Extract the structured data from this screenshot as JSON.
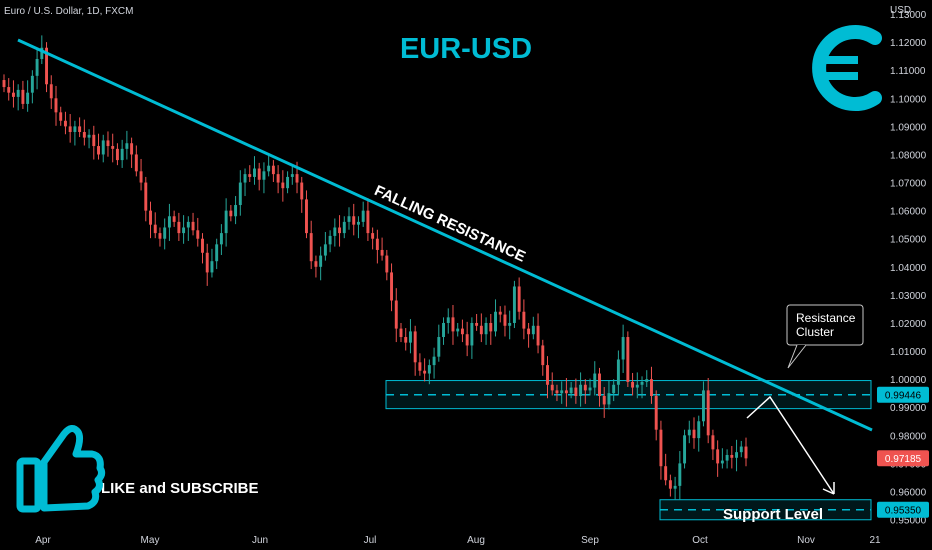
{
  "chart_data": {
    "type": "candlestick",
    "symbol": "Euro / U.S. Dollar, 1D, FXCM",
    "title": "EUR-USD",
    "currency_label": "USD",
    "y_ticks": [
      "1.13000",
      "1.12000",
      "1.11000",
      "1.10000",
      "1.09000",
      "1.08000",
      "1.07000",
      "1.06000",
      "1.05000",
      "1.04000",
      "1.03000",
      "1.02000",
      "1.01000",
      "1.00000",
      "0.99000",
      "0.98000",
      "0.97000",
      "0.96000",
      "0.95000"
    ],
    "x_ticks": [
      "Apr",
      "May",
      "Jun",
      "Jul",
      "Aug",
      "Sep",
      "Oct",
      "Nov",
      "21"
    ],
    "ylim": [
      0.947,
      1.135
    ],
    "candles_close": [
      1.104,
      1.102,
      1.1005,
      1.103,
      1.098,
      1.102,
      1.108,
      1.114,
      1.118,
      1.105,
      1.1,
      1.095,
      1.092,
      1.09,
      1.088,
      1.09,
      1.088,
      1.086,
      1.087,
      1.083,
      1.08,
      1.085,
      1.083,
      1.082,
      1.078,
      1.082,
      1.084,
      1.08,
      1.074,
      1.07,
      1.06,
      1.055,
      1.052,
      1.05,
      1.054,
      1.058,
      1.056,
      1.052,
      1.054,
      1.056,
      1.053,
      1.05,
      1.045,
      1.038,
      1.042,
      1.048,
      1.052,
      1.06,
      1.058,
      1.062,
      1.07,
      1.073,
      1.072,
      1.075,
      1.071,
      1.074,
      1.076,
      1.073,
      1.07,
      1.068,
      1.072,
      1.073,
      1.07,
      1.064,
      1.052,
      1.042,
      1.04,
      1.044,
      1.048,
      1.051,
      1.054,
      1.052,
      1.056,
      1.058,
      1.055,
      1.056,
      1.06,
      1.052,
      1.05,
      1.046,
      1.044,
      1.038,
      1.028,
      1.018,
      1.015,
      1.013,
      1.017,
      1.006,
      1.003,
      1.002,
      1.005,
      1.008,
      1.015,
      1.02,
      1.022,
      1.017,
      1.018,
      1.016,
      1.012,
      1.02,
      1.019,
      1.016,
      1.02,
      1.017,
      1.024,
      1.023,
      1.019,
      1.02,
      1.033,
      1.024,
      1.018,
      1.016,
      1.019,
      1.012,
      1.005,
      0.998,
      0.996,
      0.995,
      0.996,
      0.995,
      0.997,
      0.994,
      0.998,
      0.996,
      0.997,
      1.002,
      0.994,
      0.991,
      0.995,
      0.998,
      1.007,
      1.015,
      0.999,
      0.997,
      0.998,
      0.999,
      1.0,
      0.994,
      0.982,
      0.969,
      0.964,
      0.961,
      0.962,
      0.97,
      0.98,
      0.982,
      0.979,
      0.985,
      0.996,
      0.98,
      0.975,
      0.97,
      0.971,
      0.973,
      0.972,
      0.974,
      0.976,
      0.9718
    ],
    "annotations": {
      "trendline": "FALLING RESISTANCE",
      "callout": "Resistance\nCluster",
      "support_label": "Support Level",
      "cta": "LIKE and SUBSCRIBE"
    },
    "price_markers": [
      {
        "label": "0.99446",
        "value": 0.99446,
        "color": "#00bcd4",
        "text_color": "#000000"
      },
      {
        "label": "0.97185",
        "value": 0.97185,
        "color": "#ef5350",
        "text_color": "#ffffff"
      },
      {
        "label": "0.95350",
        "value": 0.9535,
        "color": "#00bcd4",
        "text_color": "#000000"
      }
    ],
    "zones": [
      {
        "name": "resistance-zone",
        "low": 0.9895,
        "high": 0.9995,
        "center": 0.99446
      },
      {
        "name": "support-zone",
        "low": 0.951,
        "high": 0.956,
        "center": 0.9535
      }
    ],
    "colors": {
      "up": "#26a69a",
      "down": "#ef5350",
      "accent": "#00bcd4",
      "euro_icon": "#00bcd4",
      "thumb_icon": "#00bcd4",
      "arrow": "#ffffff"
    },
    "icons": {
      "currency": "euro-icon",
      "cta": "thumbs-up-icon"
    }
  }
}
